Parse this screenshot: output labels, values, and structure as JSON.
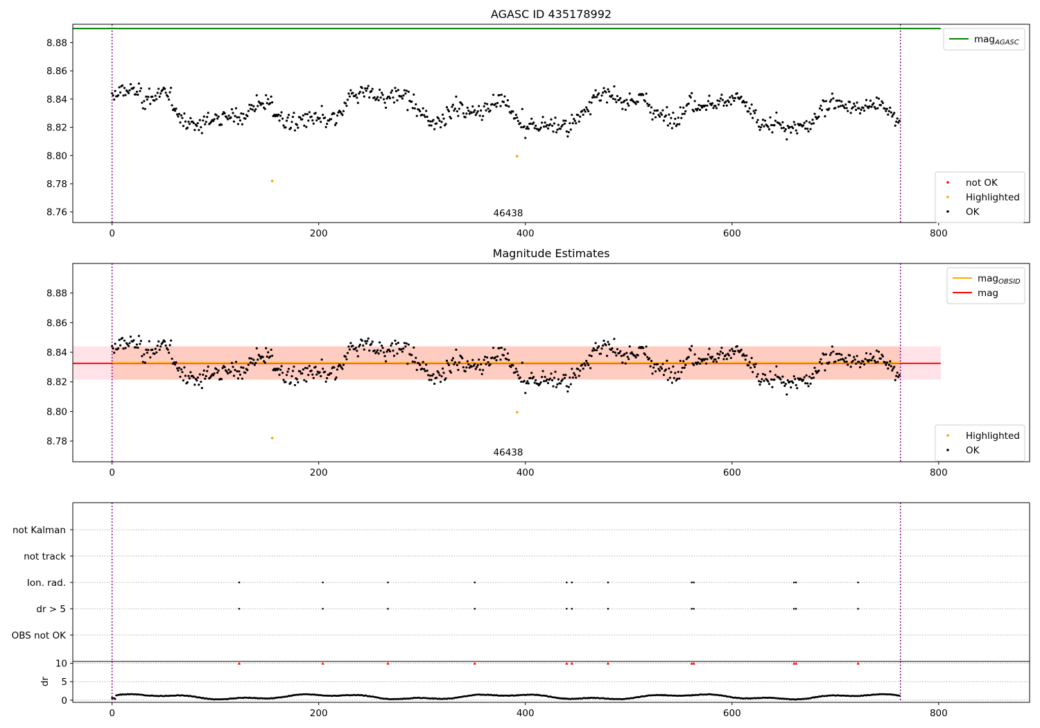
{
  "figure": {
    "title": "AGASC ID 435178992",
    "panel2_title": "Magnitude Estimates",
    "obsid_label": "46438"
  },
  "chart_data": [
    {
      "type": "scatter",
      "title": "AGASC ID 435178992",
      "xlim": [
        -38,
        888
      ],
      "ylim": [
        8.7525,
        8.893
      ],
      "x_ticks": [
        "0",
        "200",
        "400",
        "600",
        "800"
      ],
      "y_ticks": [
        "8.76",
        "8.78",
        "8.80",
        "8.82",
        "8.84",
        "8.86",
        "8.88"
      ],
      "vlines": [
        0,
        763
      ],
      "lines": [
        {
          "name": "mag_AGASC",
          "y": 8.89,
          "x": [
            -38,
            802
          ],
          "color": "#008000"
        }
      ],
      "legend_top": {
        "position": "upper right",
        "entries": [
          {
            "label": "mag",
            "sub": "AGASC",
            "color": "#008000",
            "kind": "line"
          }
        ]
      },
      "legend_bottom": {
        "position": "lower right",
        "entries": [
          {
            "label": "not OK",
            "color": "#ff0000",
            "kind": "dot"
          },
          {
            "label": "Highlighted",
            "color": "#ffa500",
            "kind": "dot"
          },
          {
            "label": "OK",
            "color": "#000000",
            "kind": "dot"
          }
        ]
      },
      "annotation": {
        "text": "46438",
        "x": 382
      },
      "highlighted": [
        [
          155,
          8.782
        ],
        [
          392,
          8.7995
        ]
      ],
      "ok_series": {
        "n": 763,
        "description_only": "black points"
      }
    },
    {
      "type": "scatter",
      "title": "Magnitude Estimates",
      "xlim": [
        -38,
        888
      ],
      "ylim": [
        8.766,
        8.9
      ],
      "x_ticks": [
        "0",
        "200",
        "400",
        "600",
        "800"
      ],
      "y_ticks": [
        "8.78",
        "8.80",
        "8.82",
        "8.84",
        "8.86",
        "8.88"
      ],
      "vlines": [
        0,
        763
      ],
      "mag": 8.8325,
      "mag_obsid": 8.8328,
      "band": [
        8.8215,
        8.844
      ],
      "band_x": [
        -38,
        802
      ],
      "legend_top": {
        "position": "upper right",
        "entries": [
          {
            "label": "mag",
            "sub": "OBSID",
            "color": "#ffa500",
            "kind": "line"
          },
          {
            "label": "mag",
            "sub": "",
            "color": "#ff0000",
            "kind": "line"
          }
        ]
      },
      "legend_bottom": {
        "position": "lower right",
        "entries": [
          {
            "label": "Highlighted",
            "color": "#ffa500",
            "kind": "dot"
          },
          {
            "label": "OK",
            "color": "#000000",
            "kind": "dot"
          }
        ]
      },
      "annotation": {
        "text": "46438",
        "x": 382
      },
      "highlighted": [
        [
          155,
          8.782
        ],
        [
          392,
          8.7995
        ]
      ]
    },
    {
      "type": "scatter",
      "title": "",
      "xlim": [
        -38,
        888
      ],
      "categories": [
        "not Kalman",
        "not track",
        "Ion. rad.",
        "dr > 5",
        "OBS not OK"
      ],
      "vlines": [
        0,
        763
      ],
      "flag_x": [
        123,
        204,
        267,
        351,
        440,
        445,
        480,
        561,
        563,
        660,
        662,
        722
      ],
      "flags": {
        "Ion. rad.": true,
        "dr > 5": true
      }
    },
    {
      "type": "line",
      "title": "",
      "ylabel": "dr",
      "xlim": [
        -38,
        888
      ],
      "ylim": [
        -0.6,
        10.5
      ],
      "x_ticks": [
        "0",
        "200",
        "400",
        "600",
        "800"
      ],
      "y_ticks": [
        "0",
        "5",
        "10"
      ],
      "vlines": [
        0,
        763
      ],
      "markers_at_10": [
        123,
        204,
        267,
        351,
        440,
        445,
        480,
        561,
        563,
        660,
        662,
        722
      ]
    }
  ]
}
